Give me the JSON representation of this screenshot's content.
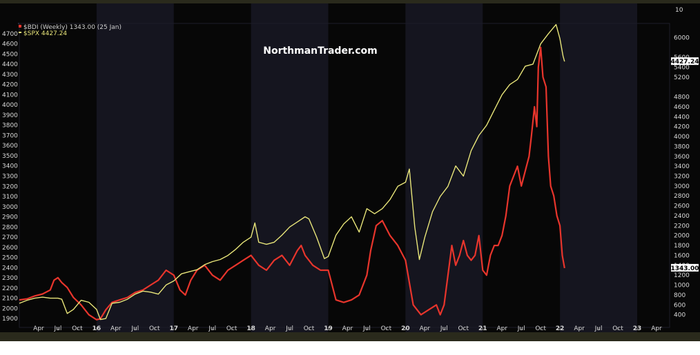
{
  "watermark": "NorthmanTrader.com",
  "chart_data": {
    "type": "line",
    "legend_placement": "top-left",
    "grid": false,
    "x_range": [
      "2015-01",
      "2023-05"
    ],
    "left_axis": {
      "ylim": [
        1840,
        4760
      ],
      "ticks": [
        1900,
        2000,
        2100,
        2200,
        2300,
        2400,
        2500,
        2600,
        2700,
        2800,
        2900,
        3000,
        3100,
        3200,
        3300,
        3400,
        3500,
        3600,
        3700,
        3800,
        3900,
        4000,
        4100,
        4200,
        4300,
        4400,
        4500,
        4600,
        4700
      ]
    },
    "right_axis": {
      "ylim": [
        200,
        6200
      ],
      "ticks": [
        400,
        600,
        800,
        1000,
        1200,
        1400,
        1600,
        1800,
        2000,
        2200,
        2400,
        2600,
        2800,
        3000,
        3200,
        3400,
        3600,
        3800,
        4000,
        4200,
        4400,
        4600,
        4800,
        5200,
        5400,
        5600,
        6000
      ],
      "top_label": "10"
    },
    "x_ticks": [
      {
        "label": "Apr",
        "date": 2015.25
      },
      {
        "label": "Jul",
        "date": 2015.5
      },
      {
        "label": "Oct",
        "date": 2015.75
      },
      {
        "label": "16",
        "date": 2016.0,
        "year": true
      },
      {
        "label": "Apr",
        "date": 2016.25
      },
      {
        "label": "Jul",
        "date": 2016.5
      },
      {
        "label": "Oct",
        "date": 2016.75
      },
      {
        "label": "17",
        "date": 2017.0,
        "year": true
      },
      {
        "label": "Apr",
        "date": 2017.25
      },
      {
        "label": "Jul",
        "date": 2017.5
      },
      {
        "label": "Oct",
        "date": 2017.75
      },
      {
        "label": "18",
        "date": 2018.0,
        "year": true
      },
      {
        "label": "Apr",
        "date": 2018.25
      },
      {
        "label": "Jul",
        "date": 2018.5
      },
      {
        "label": "Oct",
        "date": 2018.75
      },
      {
        "label": "19",
        "date": 2019.0,
        "year": true
      },
      {
        "label": "Apr",
        "date": 2019.25
      },
      {
        "label": "Jul",
        "date": 2019.5
      },
      {
        "label": "Oct",
        "date": 2019.75
      },
      {
        "label": "20",
        "date": 2020.0,
        "year": true
      },
      {
        "label": "Apr",
        "date": 2020.25
      },
      {
        "label": "Jul",
        "date": 2020.5
      },
      {
        "label": "Oct",
        "date": 2020.75
      },
      {
        "label": "21",
        "date": 2021.0,
        "year": true
      },
      {
        "label": "Apr",
        "date": 2021.25
      },
      {
        "label": "Jul",
        "date": 2021.5
      },
      {
        "label": "Oct",
        "date": 2021.75
      },
      {
        "label": "22",
        "date": 2022.0,
        "year": true
      },
      {
        "label": "Apr",
        "date": 2022.25
      },
      {
        "label": "Jul",
        "date": 2022.5
      },
      {
        "label": "Oct",
        "date": 2022.75
      },
      {
        "label": "23",
        "date": 2023.0,
        "year": true
      },
      {
        "label": "Apr",
        "date": 2023.25
      }
    ],
    "shaded_years": [
      2016,
      2018,
      2020,
      2022
    ],
    "series": [
      {
        "name": "$BDI (Weekly) 1343.00 (25 Jan)",
        "axis": "right",
        "color": "#e8352c",
        "last_label": "1343.00",
        "x": [
          2015.0,
          2015.1,
          2015.2,
          2015.3,
          2015.4,
          2015.45,
          2015.5,
          2015.55,
          2015.62,
          2015.7,
          2015.8,
          2015.9,
          2016.0,
          2016.05,
          2016.12,
          2016.2,
          2016.3,
          2016.4,
          2016.5,
          2016.6,
          2016.7,
          2016.8,
          2016.9,
          2017.0,
          2017.08,
          2017.15,
          2017.22,
          2017.3,
          2017.4,
          2017.5,
          2017.6,
          2017.7,
          2017.8,
          2017.9,
          2018.0,
          2018.1,
          2018.2,
          2018.3,
          2018.4,
          2018.5,
          2018.6,
          2018.65,
          2018.7,
          2018.8,
          2018.9,
          2019.0,
          2019.1,
          2019.2,
          2019.3,
          2019.4,
          2019.5,
          2019.55,
          2019.62,
          2019.7,
          2019.8,
          2019.9,
          2020.0,
          2020.1,
          2020.2,
          2020.3,
          2020.4,
          2020.45,
          2020.5,
          2020.55,
          2020.6,
          2020.65,
          2020.7,
          2020.75,
          2020.8,
          2020.85,
          2020.9,
          2020.95,
          2021.0,
          2021.05,
          2021.1,
          2021.15,
          2021.2,
          2021.25,
          2021.3,
          2021.35,
          2021.4,
          2021.45,
          2021.5,
          2021.55,
          2021.6,
          2021.63,
          2021.67,
          2021.7,
          2021.72,
          2021.75,
          2021.78,
          2021.82,
          2021.85,
          2021.88,
          2021.92,
          2021.96,
          2022.0,
          2022.03,
          2022.06
        ],
        "values": [
          700,
          720,
          780,
          820,
          900,
          1100,
          1150,
          1050,
          950,
          750,
          600,
          400,
          300,
          320,
          500,
          650,
          700,
          750,
          850,
          900,
          1000,
          1100,
          1300,
          1200,
          900,
          800,
          1100,
          1300,
          1400,
          1200,
          1100,
          1300,
          1400,
          1500,
          1600,
          1400,
          1300,
          1500,
          1600,
          1400,
          1700,
          1800,
          1600,
          1400,
          1300,
          1300,
          700,
          650,
          700,
          800,
          1200,
          1700,
          2200,
          2300,
          2000,
          1800,
          1500,
          600,
          400,
          500,
          600,
          400,
          600,
          1200,
          1800,
          1400,
          1600,
          1900,
          1600,
          1500,
          1600,
          2000,
          1300,
          1200,
          1600,
          1800,
          1800,
          2000,
          2400,
          3000,
          3200,
          3400,
          3000,
          3300,
          3600,
          4000,
          4600,
          4200,
          5400,
          5800,
          5200,
          5000,
          3600,
          3000,
          2800,
          2400,
          2200,
          1600,
          1343
        ]
      },
      {
        "name": "$SPX 4427.24",
        "axis": "left",
        "color": "#e9e67a",
        "last_label": "4427.24",
        "x": [
          2015.0,
          2015.1,
          2015.2,
          2015.3,
          2015.4,
          2015.5,
          2015.55,
          2015.62,
          2015.7,
          2015.8,
          2015.9,
          2016.0,
          2016.05,
          2016.12,
          2016.2,
          2016.3,
          2016.4,
          2016.5,
          2016.6,
          2016.7,
          2016.8,
          2016.9,
          2017.0,
          2017.1,
          2017.2,
          2017.3,
          2017.4,
          2017.5,
          2017.6,
          2017.7,
          2017.8,
          2017.9,
          2018.0,
          2018.05,
          2018.1,
          2018.2,
          2018.3,
          2018.4,
          2018.5,
          2018.6,
          2018.7,
          2018.75,
          2018.85,
          2018.95,
          2019.0,
          2019.1,
          2019.2,
          2019.3,
          2019.4,
          2019.5,
          2019.6,
          2019.7,
          2019.8,
          2019.9,
          2020.0,
          2020.05,
          2020.12,
          2020.18,
          2020.25,
          2020.35,
          2020.45,
          2020.55,
          2020.65,
          2020.75,
          2020.85,
          2020.95,
          2021.05,
          2021.15,
          2021.25,
          2021.35,
          2021.45,
          2021.55,
          2021.65,
          2021.75,
          2021.85,
          2021.95,
          2022.0,
          2022.04,
          2022.06
        ],
        "values": [
          2050,
          2080,
          2100,
          2110,
          2100,
          2100,
          2090,
          1950,
          1990,
          2080,
          2060,
          1990,
          1890,
          1900,
          2050,
          2060,
          2090,
          2140,
          2170,
          2160,
          2140,
          2230,
          2270,
          2340,
          2360,
          2380,
          2430,
          2460,
          2480,
          2520,
          2580,
          2650,
          2700,
          2840,
          2650,
          2630,
          2650,
          2720,
          2800,
          2850,
          2900,
          2880,
          2700,
          2490,
          2510,
          2720,
          2830,
          2900,
          2750,
          2980,
          2930,
          2980,
          3070,
          3200,
          3240,
          3370,
          2800,
          2480,
          2700,
          2950,
          3100,
          3200,
          3400,
          3300,
          3550,
          3700,
          3800,
          3950,
          4100,
          4200,
          4250,
          4380,
          4400,
          4600,
          4700,
          4790,
          4650,
          4480,
          4427
        ]
      }
    ]
  }
}
